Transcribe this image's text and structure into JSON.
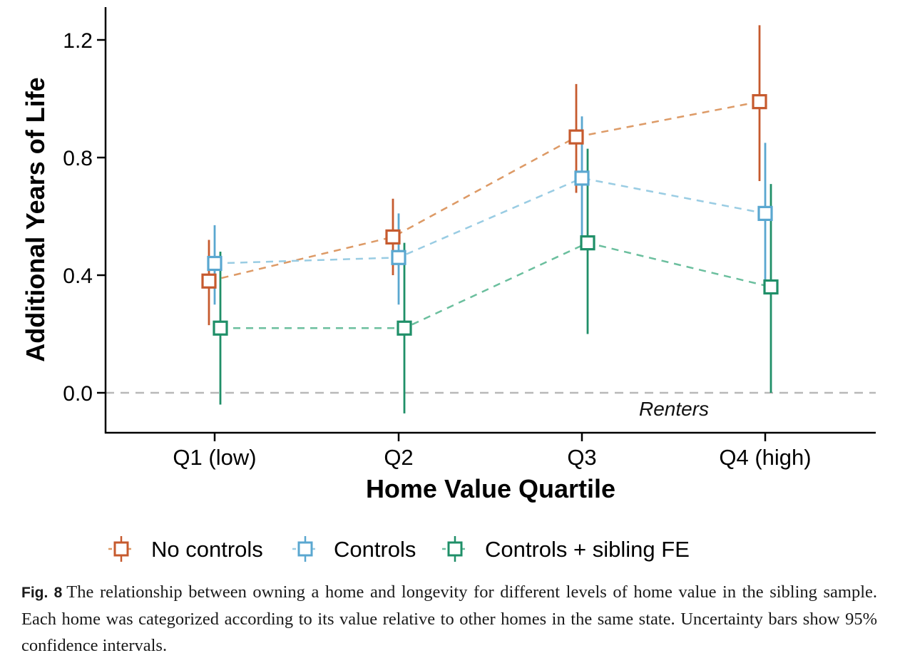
{
  "chart_data": {
    "type": "scatter",
    "xlabel": "Home Value Quartile",
    "ylabel": "Additional Years of Life",
    "categories": [
      "Q1 (low)",
      "Q2",
      "Q3",
      "Q4 (high)"
    ],
    "ylim": [
      -0.14,
      1.32
    ],
    "yticks": [
      0.0,
      0.4,
      0.8,
      1.2
    ],
    "ytick_labels": [
      "0.0",
      "0.4",
      "0.8",
      "1.2"
    ],
    "reference_line": {
      "y": 0.0,
      "label": "Renters"
    },
    "series": [
      {
        "name": "No controls",
        "color": "#c65a2e",
        "line_color": "#dd9a66",
        "values": [
          0.38,
          0.53,
          0.87,
          0.99
        ],
        "lower": [
          0.23,
          0.4,
          0.68,
          0.72
        ],
        "upper": [
          0.52,
          0.66,
          1.05,
          1.25
        ]
      },
      {
        "name": "Controls",
        "color": "#5aa7d0",
        "line_color": "#99cce3",
        "values": [
          0.44,
          0.46,
          0.73,
          0.61
        ],
        "lower": [
          0.3,
          0.3,
          0.53,
          0.37
        ],
        "upper": [
          0.57,
          0.61,
          0.94,
          0.85
        ]
      },
      {
        "name": "Controls + sibling FE",
        "color": "#1f8f68",
        "line_color": "#6bbf9e",
        "values": [
          0.22,
          0.22,
          0.51,
          0.36
        ],
        "lower": [
          -0.04,
          -0.07,
          0.2,
          0.0
        ],
        "upper": [
          0.48,
          0.51,
          0.83,
          0.71
        ]
      }
    ],
    "grid": false,
    "legend_position": "bottom"
  },
  "caption": {
    "label": "Fig. 8",
    "text": "The relationship between owning a home and longevity for different levels of home value in the sibling sample. Each home was categorized according to its value relative to other homes in the same state. Uncertainty bars show 95% confidence intervals."
  }
}
